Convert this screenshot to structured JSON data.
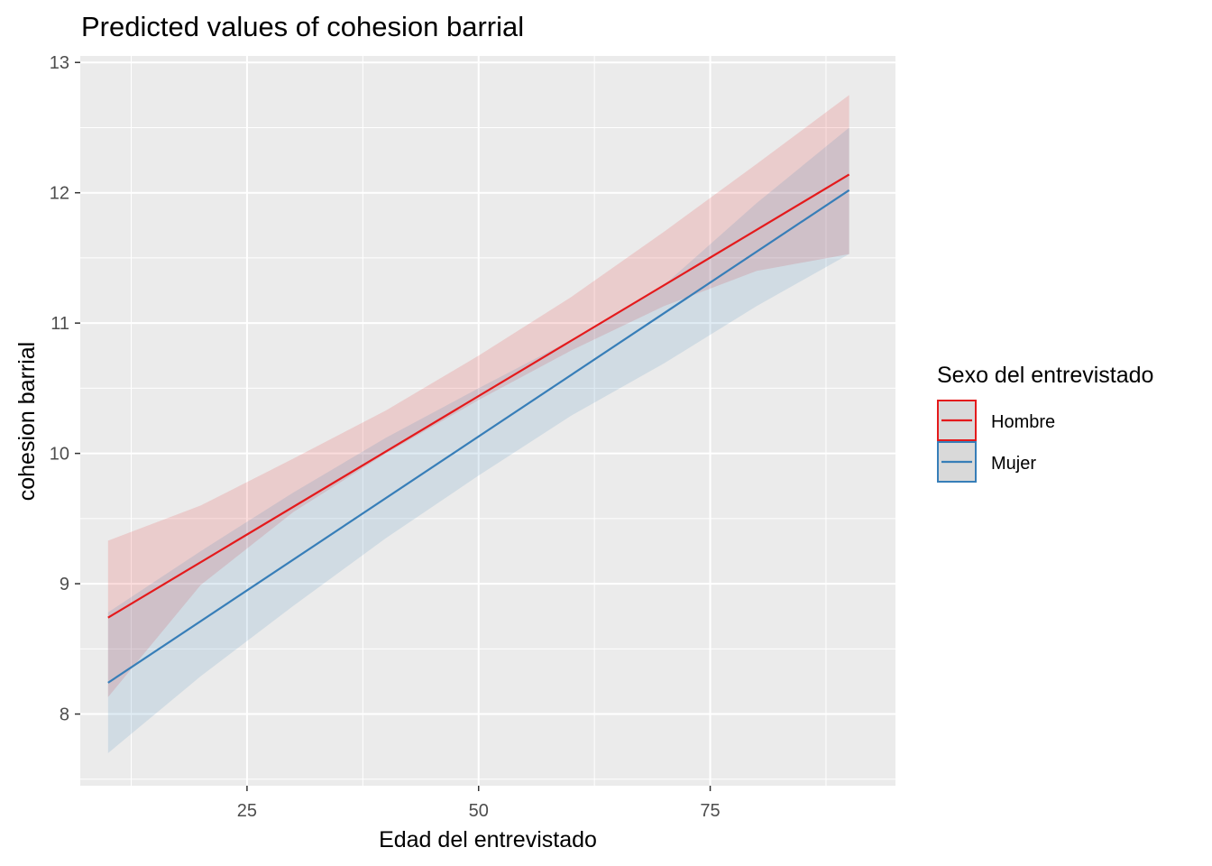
{
  "chart_data": {
    "type": "line",
    "title": "Predicted values of cohesion barrial",
    "xlabel": "Edad del entrevistado",
    "ylabel": "cohesion barrial",
    "xlim": [
      7,
      95
    ],
    "ylim": [
      7.45,
      13.05
    ],
    "x_major_ticks": [
      25,
      50,
      75
    ],
    "x_minor_ticks": [
      12.5,
      37.5,
      62.5,
      87.5
    ],
    "y_major_ticks": [
      8,
      9,
      10,
      11,
      12,
      13
    ],
    "y_minor_ticks": [
      7.5,
      8.5,
      9.5,
      10.5,
      11.5,
      12.5
    ],
    "x_tick_labels": [
      "25",
      "50",
      "75"
    ],
    "y_tick_labels": [
      "8",
      "9",
      "10",
      "11",
      "12",
      "13"
    ],
    "grid": true,
    "legend_position": "right",
    "legend_title": "Sexo del entrevistado",
    "series": [
      {
        "name": "Hombre",
        "color": "#e41a1c",
        "x": [
          10,
          90
        ],
        "y": [
          8.74,
          12.14
        ],
        "band_x": [
          10,
          20,
          30,
          40,
          50,
          60,
          70,
          80,
          90
        ],
        "band_lower": [
          8.13,
          8.99,
          9.55,
          10.0,
          10.41,
          10.79,
          11.13,
          11.4,
          11.53
        ],
        "band_upper": [
          9.33,
          9.6,
          9.96,
          10.33,
          10.75,
          11.2,
          11.7,
          12.22,
          12.75
        ]
      },
      {
        "name": "Mujer",
        "color": "#377eb8",
        "x": [
          10,
          90
        ],
        "y": [
          8.24,
          12.02
        ],
        "band_x": [
          10,
          20,
          30,
          40,
          50,
          60,
          70,
          80,
          90
        ],
        "band_lower": [
          7.7,
          8.29,
          8.83,
          9.35,
          9.83,
          10.29,
          10.69,
          11.13,
          11.53
        ],
        "band_upper": [
          8.78,
          9.25,
          9.7,
          10.12,
          10.5,
          10.87,
          11.29,
          11.92,
          12.5
        ]
      }
    ]
  }
}
